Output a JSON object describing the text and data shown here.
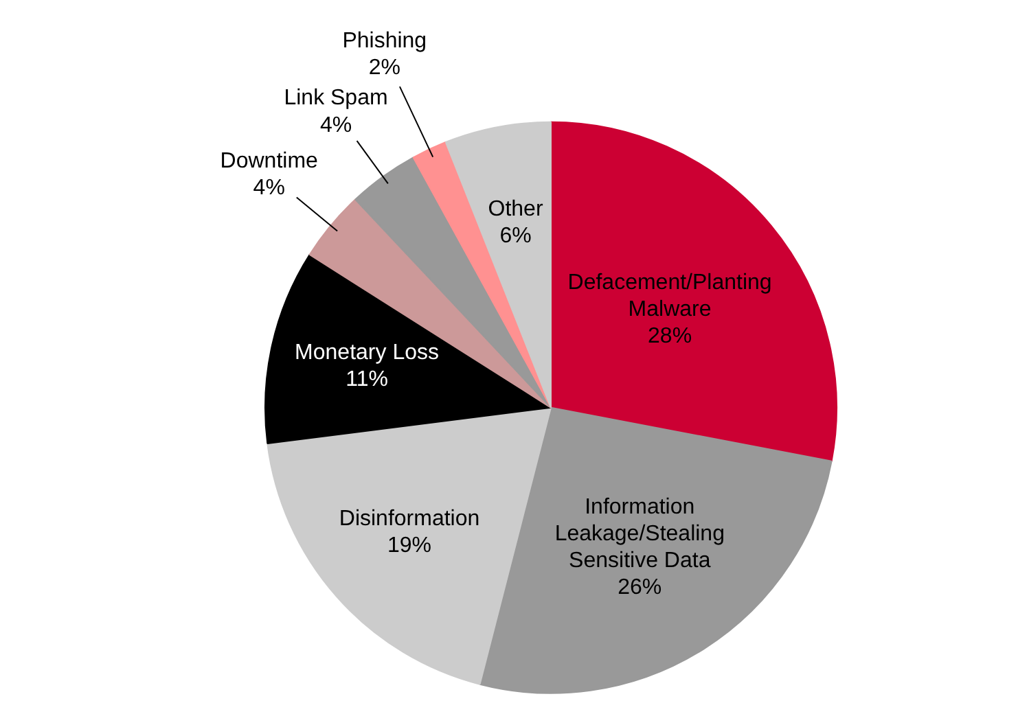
{
  "chart_data": {
    "type": "pie",
    "categories": [
      "Defacement/Planting Malware",
      "Information Leakage/Stealing Sensitive Data",
      "Disinformation",
      "Monetary Loss",
      "Downtime",
      "Link Spam",
      "Phishing",
      "Other"
    ],
    "values": [
      28,
      26,
      19,
      11,
      4,
      4,
      2,
      6
    ],
    "colors": [
      "#cc0033",
      "#999999",
      "#cccccc",
      "#000000",
      "#cc9999",
      "#999999",
      "#ff9191",
      "#cccccc"
    ],
    "value_labels": [
      "28%",
      "26%",
      "19%",
      "11%",
      "4%",
      "4%",
      "2%",
      "6%"
    ]
  }
}
